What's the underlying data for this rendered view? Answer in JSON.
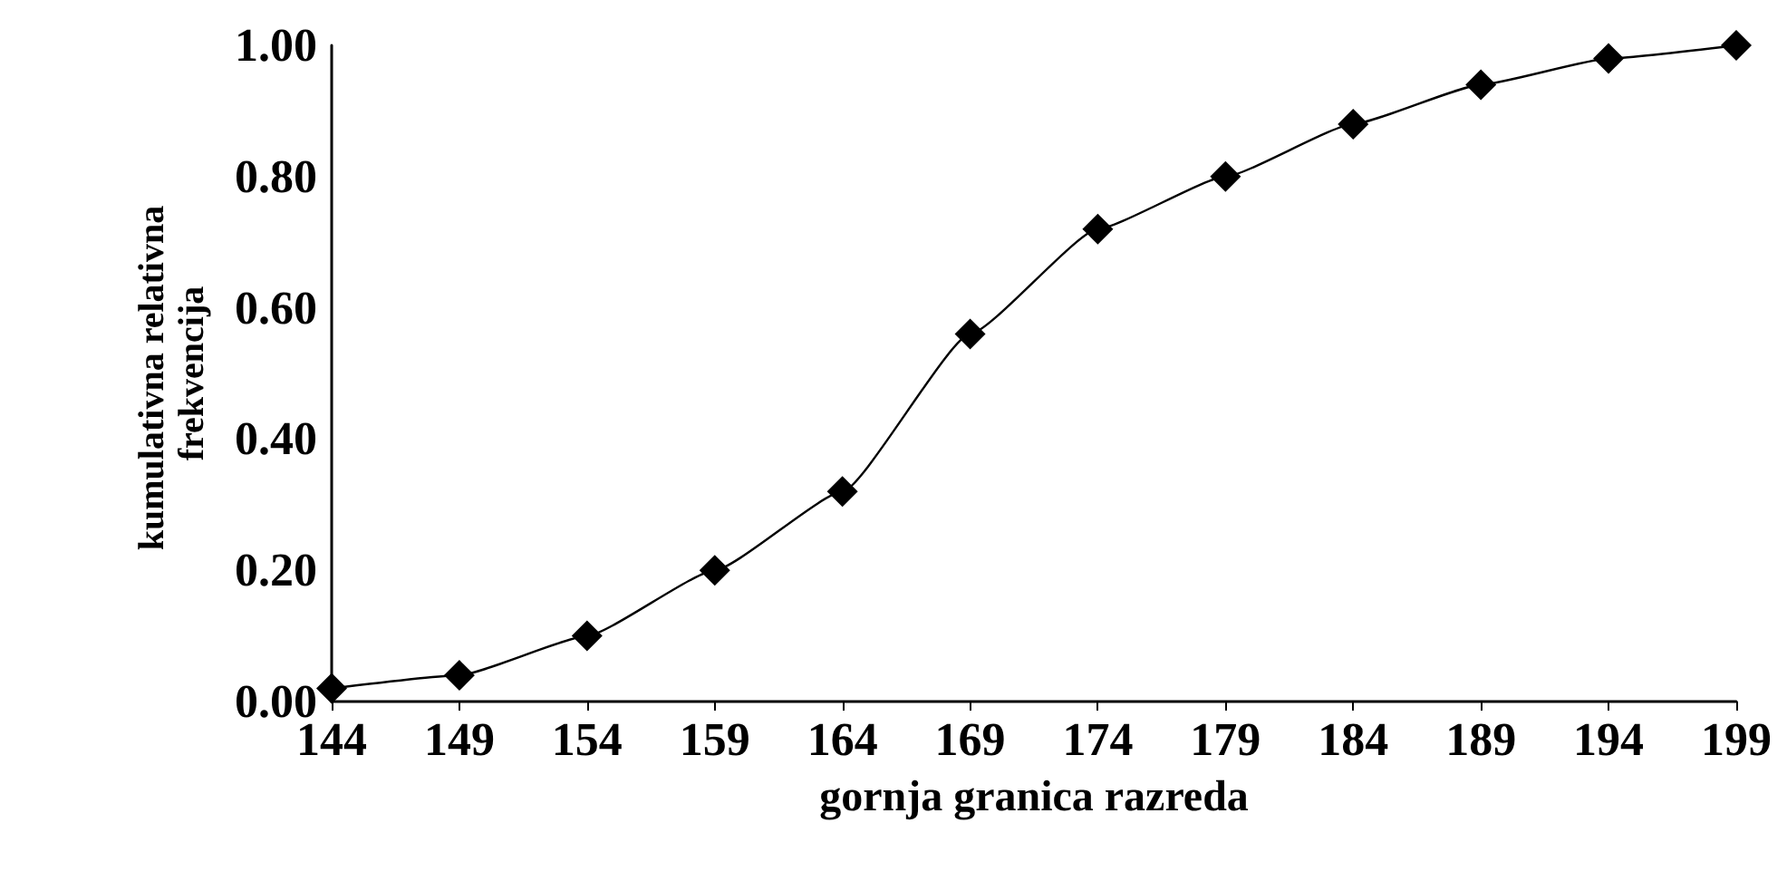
{
  "chart_data": {
    "type": "line",
    "xlabel": "gornja granica razreda",
    "ylabel": "kumulativna relativna frekvencija",
    "x": [
      144,
      149,
      154,
      159,
      164,
      169,
      174,
      179,
      184,
      189,
      194,
      199
    ],
    "series": [
      {
        "color": "#000000",
        "values": [
          0.02,
          0.04,
          0.1,
          0.2,
          0.32,
          0.56,
          0.72,
          0.8,
          0.88,
          0.94,
          0.98,
          1.0
        ]
      }
    ],
    "xlim": [
      144,
      199
    ],
    "xticks": [
      144,
      149,
      154,
      159,
      164,
      169,
      174,
      179,
      184,
      189,
      194,
      199
    ],
    "ylim": [
      0,
      1
    ],
    "yticks": [
      {
        "value": 0,
        "label": "0.00"
      },
      {
        "value": 0.2,
        "label": "0.20"
      },
      {
        "value": 0.4,
        "label": "0.40"
      },
      {
        "value": 0.6,
        "label": "0.60"
      },
      {
        "value": 0.8,
        "label": "0.80"
      },
      {
        "value": 1,
        "label": "1.00"
      }
    ],
    "marker": "diamond",
    "line_style": "solid"
  }
}
